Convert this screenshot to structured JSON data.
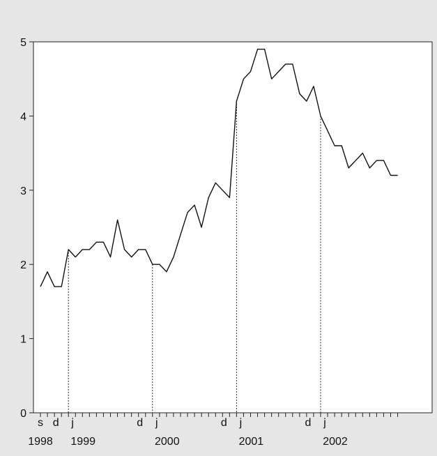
{
  "chart_data": {
    "type": "line",
    "title": "",
    "xlabel": "",
    "ylabel": "",
    "ylim": [
      0,
      5
    ],
    "yticks": [
      0,
      1,
      2,
      3,
      4,
      5
    ],
    "grid": false,
    "colors": {
      "background": "#e6e6e6",
      "plot_area": "#ffffff",
      "line": "#111111"
    },
    "x_month_labels": [
      {
        "index": 0,
        "label": "s"
      },
      {
        "index": 3,
        "label": "d"
      },
      {
        "index": 4,
        "label": "j"
      },
      {
        "index": 15,
        "label": "d"
      },
      {
        "index": 16,
        "label": "j"
      },
      {
        "index": 27,
        "label": "d"
      },
      {
        "index": 28,
        "label": "j"
      },
      {
        "index": 39,
        "label": "d"
      },
      {
        "index": 40,
        "label": "j"
      }
    ],
    "x_year_labels": [
      {
        "index": 0,
        "label": "1998"
      },
      {
        "index": 4,
        "label": "1999"
      },
      {
        "index": 16,
        "label": "2000"
      },
      {
        "index": 28,
        "label": "2001"
      },
      {
        "index": 40,
        "label": "2002"
      }
    ],
    "vertical_markers": [
      4,
      16,
      28,
      40
    ],
    "series": [
      {
        "values": [
          1.7,
          1.9,
          1.7,
          1.7,
          2.2,
          2.1,
          2.2,
          2.2,
          2.3,
          2.3,
          2.1,
          2.6,
          2.2,
          2.1,
          2.2,
          2.2,
          2.0,
          2.0,
          1.9,
          2.1,
          2.4,
          2.7,
          2.8,
          2.5,
          2.9,
          3.1,
          3.0,
          2.9,
          4.2,
          4.5,
          4.6,
          4.9,
          4.9,
          4.5,
          4.6,
          4.7,
          4.7,
          4.3,
          4.2,
          4.4,
          4.0,
          3.8,
          3.6,
          3.6,
          3.3,
          3.4,
          3.5,
          3.3,
          3.4,
          3.4,
          3.2,
          3.2
        ]
      }
    ]
  }
}
